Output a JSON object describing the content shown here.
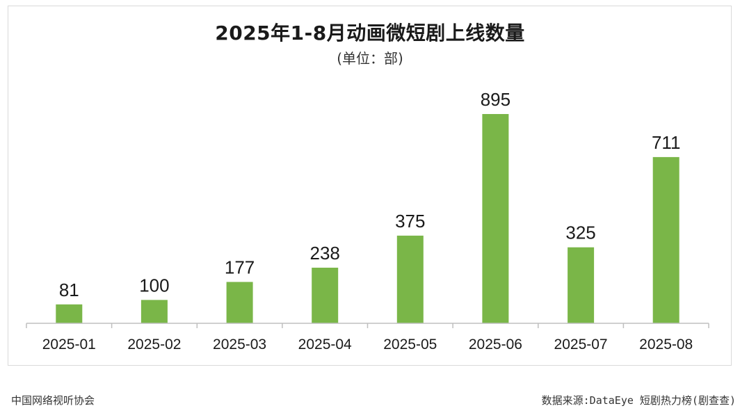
{
  "chart_data": {
    "type": "bar",
    "title": "2025年1-8月动画微短剧上线数量",
    "subtitle": "(单位：部)",
    "categories": [
      "2025-01",
      "2025-02",
      "2025-03",
      "2025-04",
      "2025-05",
      "2025-06",
      "2025-07",
      "2025-08"
    ],
    "values": [
      81,
      100,
      177,
      238,
      375,
      895,
      325,
      711
    ],
    "xlabel": "",
    "ylabel": "",
    "ylim": [
      0,
      895
    ],
    "grid": false,
    "legend": "none",
    "data_labels": true,
    "bar_color": "#7ab648"
  },
  "footer": {
    "left": "中国网络视听协会",
    "right": "数据来源:DataEye 短剧热力榜(剧查查)"
  }
}
